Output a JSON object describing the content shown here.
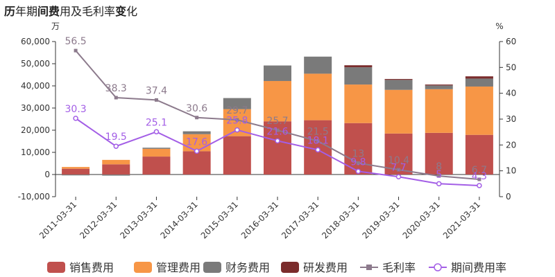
{
  "title": {
    "parts": [
      {
        "text": "历",
        "bold": true
      },
      {
        "text": "年期",
        "bold": false
      },
      {
        "text": "间费",
        "bold": true
      },
      {
        "text": "用及毛利率",
        "bold": false
      },
      {
        "text": "变",
        "bold": true
      },
      {
        "text": "化",
        "bold": false
      }
    ]
  },
  "chart_data": {
    "type": "bar",
    "stacked": true,
    "title": "历年期间费用及毛利率变化",
    "categories": [
      "2011-03-31",
      "2012-03-31",
      "2013-03-31",
      "2014-03-31",
      "2015-03-31",
      "2016-03-31",
      "2017-03-31",
      "2018-03-31",
      "2019-03-31",
      "2020-03-31",
      "2021-03-31"
    ],
    "y_left": {
      "unit": "万",
      "min": -10000,
      "max": 60000,
      "ticks": [
        -10000,
        0,
        10000,
        20000,
        30000,
        40000,
        50000,
        60000
      ],
      "tick_labels": [
        "-10,000",
        "0",
        "10,000",
        "20,000",
        "30,000",
        "40,000",
        "50,000",
        "60,000"
      ]
    },
    "y_right": {
      "unit": "%",
      "min": 0,
      "max": 60,
      "ticks": [
        0,
        10,
        20,
        30,
        40,
        50,
        60
      ],
      "tick_labels": [
        "0",
        "10",
        "20",
        "30",
        "40",
        "50",
        "60"
      ]
    },
    "series": [
      {
        "name": "销售费用",
        "kind": "bar",
        "axis": "left",
        "color": "#c0504d",
        "values": [
          2600,
          4600,
          8100,
          10500,
          17300,
          24000,
          24500,
          23200,
          18500,
          18800,
          17900
        ]
      },
      {
        "name": "管理费用",
        "kind": "bar",
        "axis": "left",
        "color": "#f79646",
        "values": [
          800,
          2000,
          3500,
          7700,
          12200,
          18200,
          21000,
          17400,
          19700,
          19700,
          21800
        ]
      },
      {
        "name": "财务费用",
        "kind": "bar",
        "axis": "left",
        "color": "#7a7a7a",
        "values": [
          -400,
          -500,
          500,
          1300,
          5000,
          7000,
          7700,
          7800,
          4500,
          1700,
          3600
        ]
      },
      {
        "name": "研发费用",
        "kind": "bar",
        "axis": "left",
        "color": "#7b2c2c",
        "values": [
          0,
          0,
          0,
          0,
          0,
          0,
          0,
          900,
          400,
          400,
          1000
        ]
      },
      {
        "name": "毛利率",
        "kind": "line",
        "axis": "right",
        "color": "#8c7a8c",
        "marker": "square",
        "values": [
          56.5,
          38.3,
          37.4,
          30.6,
          29.7,
          25.7,
          21.5,
          13,
          10.4,
          8,
          6.7
        ],
        "labels": [
          "56.5",
          "38.3",
          "37.4",
          "30.6",
          "29.7",
          "25.7",
          "21.5",
          "13",
          "10.4",
          "8",
          "6.7"
        ]
      },
      {
        "name": "期间费用率",
        "kind": "line",
        "axis": "right",
        "color": "#a35ee6",
        "marker": "circle",
        "values": [
          30.3,
          19.5,
          25.1,
          17.6,
          25.8,
          21.6,
          18.1,
          9.8,
          7.7,
          5,
          4.3
        ],
        "labels": [
          "30.3",
          "19.5",
          "25.1",
          "17.6",
          "25.8",
          "21.6",
          "18.1",
          "9.8",
          "7.7",
          "5",
          "4.3"
        ]
      }
    ],
    "legend_position": "bottom"
  }
}
